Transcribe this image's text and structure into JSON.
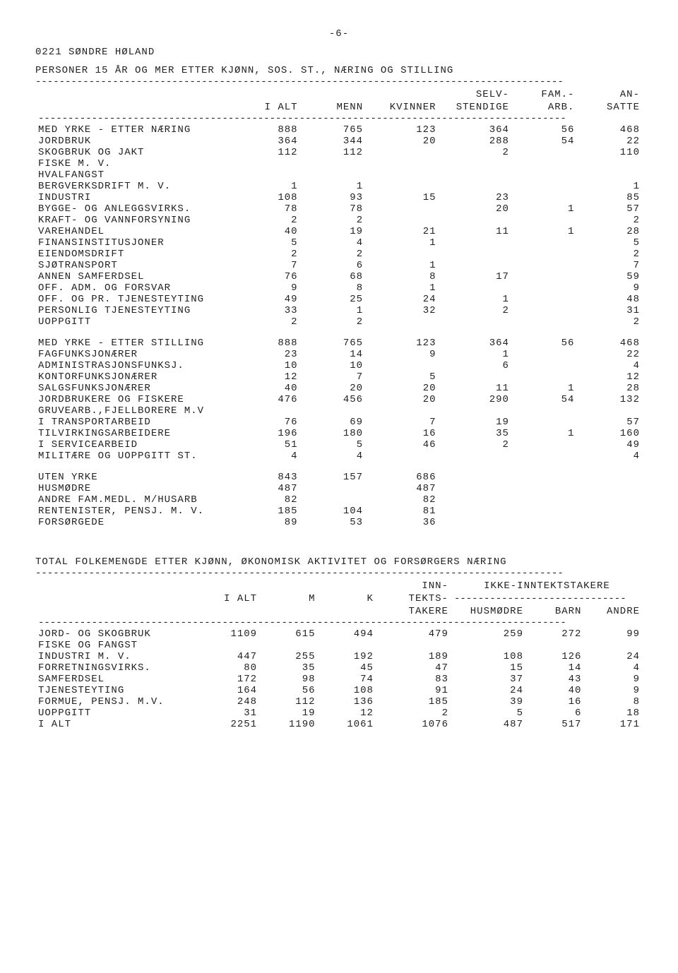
{
  "page_number": "-6-",
  "region_code": "0221 SØNDRE HØLAND",
  "table1": {
    "title": "PERSONER 15 ÅR OG MER ETTER KJØNN, SOS. ST., NÆRING OG STILLING",
    "columns": [
      "I ALT",
      "MENN",
      "KVINNER",
      "SELV-\nSTENDIGE",
      "FAM.-\nARB.",
      "AN-\nSATTE"
    ],
    "col_top": [
      "",
      "",
      "",
      "SELV-",
      "FAM.-",
      "AN-"
    ],
    "col_bottom": [
      "I ALT",
      "MENN",
      "KVINNER",
      "STENDIGE",
      "ARB.",
      "SATTE"
    ],
    "sections": [
      {
        "rows": [
          [
            "MED YRKE - ETTER NÆRING",
            "888",
            "765",
            "123",
            "364",
            "56",
            "468"
          ],
          [
            "JORDBRUK",
            "364",
            "344",
            "20",
            "288",
            "54",
            "22"
          ],
          [
            "SKOGBRUK OG JAKT",
            "112",
            "112",
            "",
            "2",
            "",
            "110"
          ],
          [
            "FISKE M. V.",
            "",
            "",
            "",
            "",
            "",
            ""
          ],
          [
            "HVALFANGST",
            "",
            "",
            "",
            "",
            "",
            ""
          ],
          [
            "BERGVERKSDRIFT M. V.",
            "1",
            "1",
            "",
            "",
            "",
            "1"
          ],
          [
            "INDUSTRI",
            "108",
            "93",
            "15",
            "23",
            "",
            "85"
          ],
          [
            "BYGGE- OG ANLEGGSVIRKS.",
            "78",
            "78",
            "",
            "20",
            "1",
            "57"
          ],
          [
            "KRAFT- OG VANNFORSYNING",
            "2",
            "2",
            "",
            "",
            "",
            "2"
          ],
          [
            "VAREHANDEL",
            "40",
            "19",
            "21",
            "11",
            "1",
            "28"
          ],
          [
            "FINANSINSTITUSJONER",
            "5",
            "4",
            "1",
            "",
            "",
            "5"
          ],
          [
            "EIENDOMSDRIFT",
            "2",
            "2",
            "",
            "",
            "",
            "2"
          ],
          [
            "SJØTRANSPORT",
            "7",
            "6",
            "1",
            "",
            "",
            "7"
          ],
          [
            "ANNEN SAMFERDSEL",
            "76",
            "68",
            "8",
            "17",
            "",
            "59"
          ],
          [
            "OFF. ADM. OG FORSVAR",
            "9",
            "8",
            "1",
            "",
            "",
            "9"
          ],
          [
            "OFF. OG PR. TJENESTEYTING",
            "49",
            "25",
            "24",
            "1",
            "",
            "48"
          ],
          [
            "PERSONLIG TJENESTEYTING",
            "33",
            "1",
            "32",
            "2",
            "",
            "31"
          ],
          [
            "UOPPGITT",
            "2",
            "2",
            "",
            "",
            "",
            "2"
          ]
        ]
      },
      {
        "rows": [
          [
            "MED YRKE - ETTER STILLING",
            "888",
            "765",
            "123",
            "364",
            "56",
            "468"
          ],
          [
            "FAGFUNKSJONÆRER",
            "23",
            "14",
            "9",
            "1",
            "",
            "22"
          ],
          [
            "ADMINISTRASJONSFUNKSJ.",
            "10",
            "10",
            "",
            "6",
            "",
            "4"
          ],
          [
            "KONTORFUNKSJONÆRER",
            "12",
            "7",
            "5",
            "",
            "",
            "12"
          ],
          [
            "SALGSFUNKSJONÆRER",
            "40",
            "20",
            "20",
            "11",
            "1",
            "28"
          ],
          [
            "JORDBRUKERE OG FISKERE",
            "476",
            "456",
            "20",
            "290",
            "54",
            "132"
          ],
          [
            "GRUVEARB.,FJELLBORERE M.V",
            "",
            "",
            "",
            "",
            "",
            ""
          ],
          [
            "I TRANSPORTARBEID",
            "76",
            "69",
            "7",
            "19",
            "",
            "57"
          ],
          [
            "TILVIRKINGSARBEIDERE",
            "196",
            "180",
            "16",
            "35",
            "1",
            "160"
          ],
          [
            "I SERVICEARBEID",
            "51",
            "5",
            "46",
            "2",
            "",
            "49"
          ],
          [
            "MILITÆRE OG UOPPGITT ST.",
            "4",
            "4",
            "",
            "",
            "",
            "4"
          ]
        ]
      },
      {
        "rows": [
          [
            "UTEN YRKE",
            "843",
            "157",
            "686",
            "",
            "",
            ""
          ],
          [
            "HUSMØDRE",
            "487",
            "",
            "487",
            "",
            "",
            ""
          ],
          [
            "ANDRE FAM.MEDL. M/HUSARB",
            "82",
            "",
            "82",
            "",
            "",
            ""
          ],
          [
            "RENTENISTER, PENSJ. M. V.",
            "185",
            "104",
            "81",
            "",
            "",
            ""
          ],
          [
            "FORSØRGEDE",
            "89",
            "53",
            "36",
            "",
            "",
            ""
          ]
        ]
      }
    ]
  },
  "table2": {
    "title": "TOTAL FOLKEMENGDE ETTER KJØNN, ØKONOMISK AKTIVITET OG FORSØRGERS NÆRING",
    "col_top": [
      "",
      "",
      "",
      "INN-",
      "IKKE-INNTEKTSTAKERE",
      "",
      ""
    ],
    "col_mid": [
      "I ALT",
      "M",
      "K",
      "TEKTS-",
      "",
      "",
      ""
    ],
    "col_bottom": [
      "",
      "",
      "",
      "TAKERE",
      "HUSMØDRE",
      "BARN",
      "ANDRE"
    ],
    "rows": [
      [
        "JORD- OG SKOGBRUK",
        "1109",
        "615",
        "494",
        "479",
        "259",
        "272",
        "99"
      ],
      [
        "FISKE OG FANGST",
        "",
        "",
        "",
        "",
        "",
        "",
        ""
      ],
      [
        "INDUSTRI M. V.",
        "447",
        "255",
        "192",
        "189",
        "108",
        "126",
        "24"
      ],
      [
        "FORRETNINGSVIRKS.",
        "80",
        "35",
        "45",
        "47",
        "15",
        "14",
        "4"
      ],
      [
        "SAMFERDSEL",
        "172",
        "98",
        "74",
        "83",
        "37",
        "43",
        "9"
      ],
      [
        "TJENESTEYTING",
        "164",
        "56",
        "108",
        "91",
        "24",
        "40",
        "9"
      ],
      [
        "FORMUE, PENSJ. M.V.",
        "248",
        "112",
        "136",
        "185",
        "39",
        "16",
        "8"
      ],
      [
        "UOPPGITT",
        "31",
        "19",
        "12",
        "2",
        "5",
        "6",
        "18"
      ],
      [
        "I  ALT",
        "2251",
        "1190",
        "1061",
        "1076",
        "487",
        "517",
        "171"
      ]
    ]
  }
}
